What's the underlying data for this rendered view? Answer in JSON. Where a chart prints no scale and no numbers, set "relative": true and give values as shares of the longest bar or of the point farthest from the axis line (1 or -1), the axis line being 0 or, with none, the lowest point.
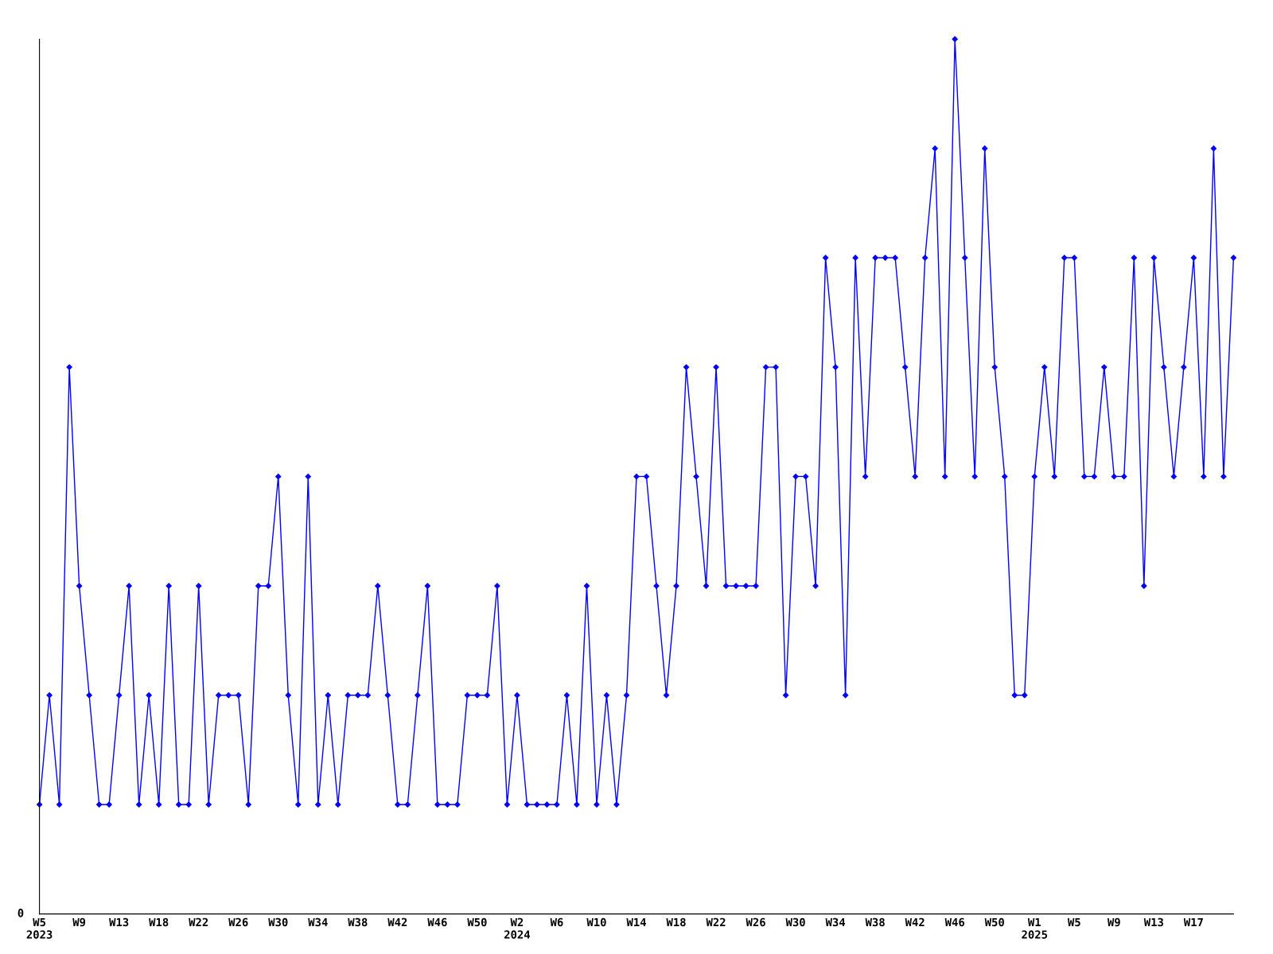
{
  "chart_data": {
    "type": "line",
    "relative": true,
    "color": "#0000ff",
    "marker": "diamond",
    "line_style": "solid",
    "grid": false,
    "legend": false,
    "annotations": [
      "0"
    ],
    "categories": [
      "W5\n2023",
      null,
      null,
      null,
      "W9",
      null,
      null,
      null,
      "W13",
      null,
      null,
      null,
      "W18",
      null,
      null,
      null,
      "W22",
      null,
      null,
      null,
      "W26",
      null,
      null,
      null,
      "W30",
      null,
      null,
      null,
      "W34",
      null,
      null,
      null,
      "W38",
      null,
      null,
      null,
      "W42",
      null,
      null,
      null,
      "W46",
      null,
      null,
      null,
      "W50",
      null,
      null,
      null,
      "W2\n2024",
      null,
      null,
      null,
      "W6",
      null,
      null,
      null,
      "W10",
      null,
      null,
      null,
      "W14",
      null,
      null,
      null,
      "W18",
      null,
      null,
      null,
      "W22",
      null,
      null,
      null,
      "W26",
      null,
      null,
      null,
      "W30",
      null,
      null,
      null,
      "W34",
      null,
      null,
      null,
      "W38",
      null,
      null,
      null,
      "W42",
      null,
      null,
      null,
      "W46",
      null,
      null,
      null,
      "W50",
      null,
      null,
      null,
      "W1\n2025",
      null,
      null,
      null,
      "W5",
      null,
      null,
      null,
      "W9",
      null,
      null,
      null,
      "W13",
      null,
      null,
      null,
      "W17",
      null,
      null,
      null,
      null
    ],
    "values": [
      0.125,
      0.25,
      0.125,
      0.625,
      0.375,
      0.25,
      0.125,
      0.125,
      0.25,
      0.375,
      0.125,
      0.25,
      0.125,
      0.375,
      0.125,
      0.125,
      0.375,
      0.125,
      0.25,
      0.25,
      0.25,
      0.125,
      0.375,
      0.375,
      0.5,
      0.25,
      0.125,
      0.5,
      0.125,
      0.25,
      0.125,
      0.25,
      0.25,
      0.25,
      0.375,
      0.25,
      0.125,
      0.125,
      0.25,
      0.375,
      0.125,
      0.125,
      0.125,
      0.25,
      0.25,
      0.25,
      0.375,
      0.125,
      0.25,
      0.125,
      0.125,
      0.125,
      0.125,
      0.25,
      0.125,
      0.375,
      0.125,
      0.25,
      0.125,
      0.25,
      0.5,
      0.5,
      0.375,
      0.25,
      0.375,
      0.625,
      0.5,
      0.375,
      0.625,
      0.375,
      0.375,
      0.375,
      0.375,
      0.625,
      0.625,
      0.25,
      0.5,
      0.5,
      0.375,
      0.75,
      0.625,
      0.25,
      0.75,
      0.5,
      0.75,
      0.75,
      0.75,
      0.625,
      0.5,
      0.75,
      0.875,
      0.5,
      1,
      0.75,
      0.5,
      0.875,
      0.625,
      0.5,
      0.25,
      0.25,
      0.5,
      0.625,
      0.5,
      0.75,
      0.75,
      0.5,
      0.5,
      0.625,
      0.5,
      0.5,
      0.75,
      0.375,
      0.75,
      0.625,
      0.5,
      0.625,
      0.75,
      0.5,
      0.875,
      0.5,
      0.75
    ]
  }
}
